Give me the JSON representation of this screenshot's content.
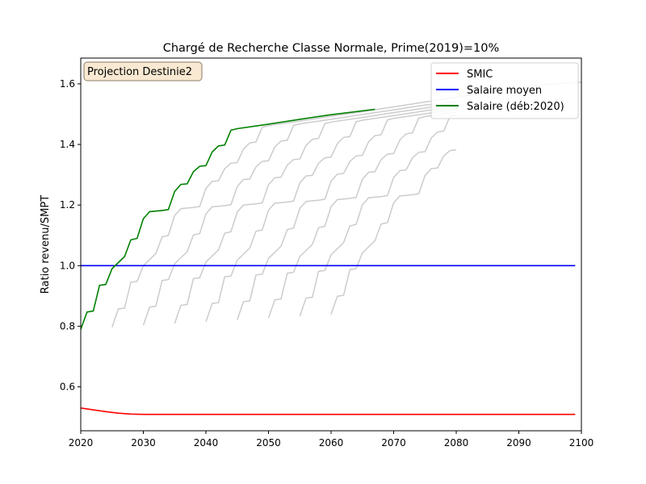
{
  "chart_data": {
    "type": "line",
    "title": "Chargé de Recherche Classe Normale, Prime(2019)=10%",
    "xlabel": "",
    "ylabel": "Ratio revenu/SMPT",
    "xlim": [
      2020,
      2100
    ],
    "ylim": [
      0.455,
      1.685
    ],
    "xticks": [
      2020,
      2030,
      2040,
      2050,
      2060,
      2070,
      2080,
      2090,
      2100
    ],
    "yticks": [
      0.6,
      0.8,
      1.0,
      1.2,
      1.4,
      1.6
    ],
    "annotation": "Projection Destinie2",
    "legend_position": "top-right",
    "colors": {
      "smic": "#ff0000",
      "moyen": "#0000ff",
      "deb2020": "#008000",
      "cohorts": "#cccccc",
      "annotation_bg": "#fae9d2",
      "annotation_border": "#8c7a66"
    },
    "series": [
      {
        "name": "SMIC",
        "color": "#ff0000",
        "x": [
          2020,
          2022,
          2024,
          2026,
          2028,
          2030,
          2040,
          2060,
          2080,
          2099
        ],
        "y": [
          0.53,
          0.524,
          0.518,
          0.513,
          0.51,
          0.509,
          0.509,
          0.509,
          0.509,
          0.509
        ]
      },
      {
        "name": "Salaire moyen",
        "color": "#0000ff",
        "x": [
          2020,
          2099
        ],
        "y": [
          1.0,
          1.0
        ]
      },
      {
        "name": "Salaire (déb:2020)",
        "color": "#008000",
        "x": [
          2020,
          2021,
          2022,
          2023,
          2024,
          2025,
          2026,
          2027,
          2028,
          2029,
          2030,
          2031,
          2032,
          2033,
          2034,
          2035,
          2036,
          2037,
          2038,
          2039,
          2040,
          2041,
          2042,
          2043,
          2044,
          2045,
          2050,
          2055,
          2060,
          2067
        ],
        "y": [
          0.79,
          0.847,
          0.85,
          0.935,
          0.938,
          0.99,
          1.01,
          1.03,
          1.085,
          1.09,
          1.155,
          1.178,
          1.18,
          1.182,
          1.185,
          1.245,
          1.268,
          1.27,
          1.31,
          1.328,
          1.33,
          1.375,
          1.395,
          1.398,
          1.447,
          1.452,
          1.467,
          1.483,
          1.498,
          1.516
        ]
      }
    ],
    "cohort_lines": [
      {
        "start": 2025,
        "x": [
          2025,
          2026,
          2027,
          2028,
          2029,
          2030,
          2031,
          2032,
          2033,
          2034,
          2035,
          2036,
          2037,
          2038,
          2039,
          2040,
          2041,
          2042,
          2043,
          2044,
          2045,
          2046,
          2047,
          2048,
          2049,
          2050,
          2055,
          2060,
          2065,
          2070,
          2075,
          2080,
          2085,
          2090,
          2095,
          2100
        ],
        "y": [
          0.797,
          0.857,
          0.86,
          0.945,
          0.948,
          1.0,
          1.02,
          1.04,
          1.095,
          1.1,
          1.165,
          1.188,
          1.19,
          1.192,
          1.195,
          1.255,
          1.278,
          1.28,
          1.32,
          1.338,
          1.34,
          1.385,
          1.405,
          1.408,
          1.457,
          1.462,
          1.477,
          1.493,
          1.508,
          1.524,
          1.54,
          1.556,
          1.571,
          1.587,
          1.599,
          1.606
        ]
      },
      {
        "start": 2030,
        "x": [
          2030,
          2031,
          2032,
          2033,
          2034,
          2035,
          2036,
          2037,
          2038,
          2039,
          2040,
          2041,
          2042,
          2043,
          2044,
          2045,
          2046,
          2047,
          2048,
          2049,
          2050,
          2051,
          2052,
          2053,
          2054,
          2055,
          2060,
          2065,
          2070,
          2075,
          2080
        ],
        "y": [
          0.803,
          0.863,
          0.866,
          0.951,
          0.954,
          1.006,
          1.026,
          1.046,
          1.101,
          1.106,
          1.171,
          1.194,
          1.196,
          1.198,
          1.201,
          1.261,
          1.284,
          1.286,
          1.326,
          1.344,
          1.346,
          1.391,
          1.411,
          1.414,
          1.463,
          1.468,
          1.483,
          1.499,
          1.514,
          1.53,
          1.54
        ]
      },
      {
        "start": 2035,
        "x": [
          2035,
          2036,
          2037,
          2038,
          2039,
          2040,
          2041,
          2042,
          2043,
          2044,
          2045,
          2046,
          2047,
          2048,
          2049,
          2050,
          2051,
          2052,
          2053,
          2054,
          2055,
          2056,
          2057,
          2058,
          2059,
          2060,
          2065,
          2070,
          2075,
          2080
        ],
        "y": [
          0.809,
          0.869,
          0.872,
          0.957,
          0.96,
          1.012,
          1.032,
          1.052,
          1.107,
          1.112,
          1.177,
          1.2,
          1.202,
          1.204,
          1.207,
          1.267,
          1.29,
          1.292,
          1.332,
          1.35,
          1.352,
          1.397,
          1.417,
          1.42,
          1.469,
          1.474,
          1.489,
          1.505,
          1.52,
          1.536
        ]
      },
      {
        "start": 2040,
        "x": [
          2040,
          2041,
          2042,
          2043,
          2044,
          2045,
          2046,
          2047,
          2048,
          2049,
          2050,
          2051,
          2052,
          2053,
          2054,
          2055,
          2056,
          2057,
          2058,
          2059,
          2060,
          2061,
          2062,
          2063,
          2064,
          2065,
          2070,
          2075,
          2080
        ],
        "y": [
          0.815,
          0.875,
          0.878,
          0.963,
          0.966,
          1.018,
          1.038,
          1.058,
          1.113,
          1.118,
          1.183,
          1.206,
          1.208,
          1.21,
          1.213,
          1.273,
          1.296,
          1.298,
          1.338,
          1.356,
          1.358,
          1.403,
          1.423,
          1.426,
          1.475,
          1.48,
          1.495,
          1.511,
          1.526
        ]
      },
      {
        "start": 2045,
        "x": [
          2045,
          2046,
          2047,
          2048,
          2049,
          2050,
          2051,
          2052,
          2053,
          2054,
          2055,
          2056,
          2057,
          2058,
          2059,
          2060,
          2061,
          2062,
          2063,
          2064,
          2065,
          2066,
          2067,
          2068,
          2069,
          2070,
          2075,
          2080
        ],
        "y": [
          0.821,
          0.881,
          0.884,
          0.969,
          0.972,
          1.024,
          1.044,
          1.064,
          1.119,
          1.124,
          1.189,
          1.212,
          1.214,
          1.216,
          1.219,
          1.279,
          1.302,
          1.304,
          1.344,
          1.362,
          1.364,
          1.409,
          1.429,
          1.432,
          1.481,
          1.486,
          1.501,
          1.517
        ]
      },
      {
        "start": 2050,
        "x": [
          2050,
          2051,
          2052,
          2053,
          2054,
          2055,
          2056,
          2057,
          2058,
          2059,
          2060,
          2061,
          2062,
          2063,
          2064,
          2065,
          2066,
          2067,
          2068,
          2069,
          2070,
          2071,
          2072,
          2073,
          2074,
          2075,
          2080
        ],
        "y": [
          0.827,
          0.887,
          0.89,
          0.975,
          0.978,
          1.03,
          1.05,
          1.07,
          1.125,
          1.13,
          1.195,
          1.218,
          1.22,
          1.222,
          1.225,
          1.285,
          1.308,
          1.31,
          1.35,
          1.368,
          1.37,
          1.415,
          1.435,
          1.438,
          1.487,
          1.492,
          1.507
        ]
      },
      {
        "start": 2055,
        "x": [
          2055,
          2056,
          2057,
          2058,
          2059,
          2060,
          2061,
          2062,
          2063,
          2064,
          2065,
          2066,
          2067,
          2068,
          2069,
          2070,
          2071,
          2072,
          2073,
          2074,
          2075,
          2076,
          2077,
          2078,
          2079,
          2080
        ],
        "y": [
          0.833,
          0.893,
          0.896,
          0.981,
          0.984,
          1.036,
          1.056,
          1.076,
          1.131,
          1.136,
          1.201,
          1.224,
          1.226,
          1.228,
          1.231,
          1.291,
          1.314,
          1.316,
          1.356,
          1.374,
          1.376,
          1.421,
          1.441,
          1.444,
          1.493,
          1.498
        ]
      },
      {
        "start": 2060,
        "x": [
          2060,
          2061,
          2062,
          2063,
          2064,
          2065,
          2066,
          2067,
          2068,
          2069,
          2070,
          2071,
          2072,
          2073,
          2074,
          2075,
          2076,
          2077,
          2078,
          2079,
          2080
        ],
        "y": [
          0.839,
          0.899,
          0.902,
          0.987,
          0.99,
          1.042,
          1.062,
          1.082,
          1.137,
          1.142,
          1.207,
          1.23,
          1.232,
          1.234,
          1.237,
          1.297,
          1.32,
          1.322,
          1.362,
          1.38,
          1.382
        ]
      }
    ]
  }
}
